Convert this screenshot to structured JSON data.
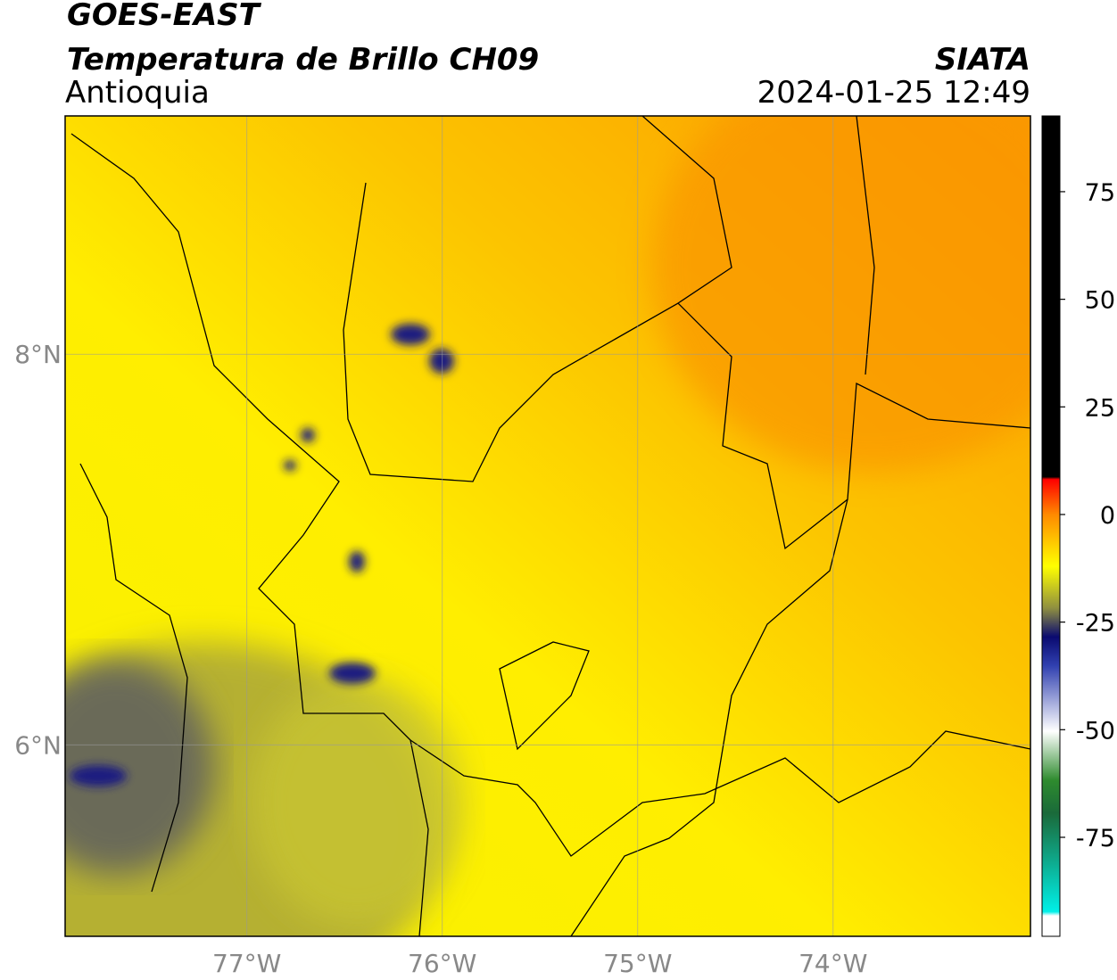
{
  "header": {
    "title": "GOES-EAST",
    "subtitle": "Temperatura de Brillo CH09",
    "region": "Antioquia",
    "source": "SIATA",
    "timestamp": "2024-01-25 12:49"
  },
  "map": {
    "lonlim": [
      -77.93,
      -72.99
    ],
    "latlim": [
      5.02,
      9.22
    ],
    "lon_ticks": [
      {
        "value": -77,
        "label": "77°W"
      },
      {
        "value": -76,
        "label": "76°W"
      },
      {
        "value": -75,
        "label": "75°W"
      },
      {
        "value": -74,
        "label": "74°W"
      }
    ],
    "lat_ticks": [
      {
        "value": 8,
        "label": "8°N"
      },
      {
        "value": 6,
        "label": "6°N"
      }
    ],
    "grid": true
  },
  "colorbar": {
    "lim": [
      -98,
      92.6
    ],
    "ticks": [
      75,
      50,
      25,
      0,
      -25,
      -50,
      -75
    ]
  }
}
